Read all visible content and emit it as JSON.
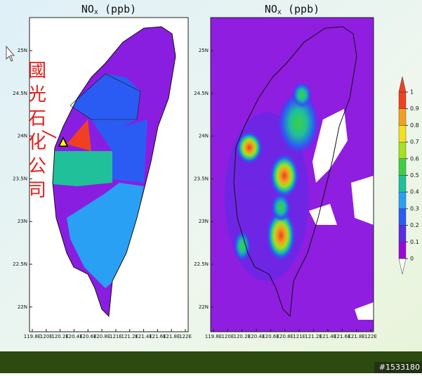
{
  "panels": [
    {
      "title": {
        "main": "NO",
        "sub": "x",
        "rest": " (ppb)"
      }
    },
    {
      "title": {
        "main": "NO",
        "sub": "x",
        "rest": " (ppb)"
      }
    }
  ],
  "lat_labels": [
    "25N",
    "24.5N",
    "24N",
    "23.5N",
    "23N",
    "22.5N",
    "22N"
  ],
  "lon_labels": [
    "119.8E",
    "120E",
    "120.2E",
    "120.4E",
    "120.6E",
    "120.8E",
    "121E",
    "121.2E",
    "121.4E",
    "121.6E",
    "121.8E",
    "122E"
  ],
  "annotation": [
    "國",
    "光",
    "石",
    "化",
    "公",
    "司"
  ],
  "colorbar": {
    "ticks": [
      0,
      0.1,
      0.2,
      0.3,
      0.4,
      0.5,
      0.6,
      0.7,
      0.8,
      0.9,
      1
    ],
    "colors": [
      "#9a08d8",
      "#5a2ce6",
      "#2a5cf4",
      "#2aa0f4",
      "#20c09a",
      "#3cd040",
      "#a6e020",
      "#f2e020",
      "#f2a020",
      "#f04022"
    ]
  },
  "footer": "#1533180"
}
